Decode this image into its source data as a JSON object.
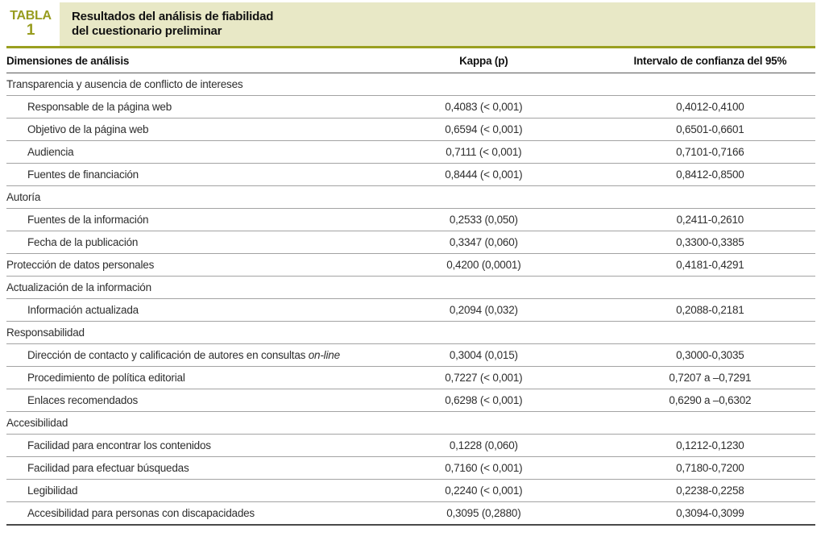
{
  "header": {
    "label_line1": "TABLA",
    "label_line2": "1",
    "title_line1": "Resultados del análisis de fiabilidad",
    "title_line2": "del cuestionario preliminar"
  },
  "colors": {
    "accent_olive": "#9aa020",
    "band_background": "#e8e8c6",
    "row_separator": "#a3a3a3",
    "bottom_rule": "#4a4a4a"
  },
  "table": {
    "columns": {
      "dimensions": "Dimensiones de análisis",
      "kappa": "Kappa (p)",
      "ci": "Intervalo de confianza del 95%"
    },
    "rows": [
      {
        "label": "Transparencia y ausencia de conflicto de intereses",
        "kappa": "",
        "ci": "",
        "category": true
      },
      {
        "label": "Responsable de la página web",
        "kappa": "0,4083 (< 0,001)",
        "ci": "0,4012-0,4100",
        "category": false
      },
      {
        "label": "Objetivo de la página web",
        "kappa": "0,6594 (< 0,001)",
        "ci": "0,6501-0,6601",
        "category": false
      },
      {
        "label": "Audiencia",
        "kappa": "0,7111 (< 0,001)",
        "ci": "0,7101-0,7166",
        "category": false
      },
      {
        "label": "Fuentes de financiación",
        "kappa": "0,8444 (< 0,001)",
        "ci": "0,8412-0,8500",
        "category": false
      },
      {
        "label": "Autoría",
        "kappa": "",
        "ci": "",
        "category": true
      },
      {
        "label": "Fuentes de la información",
        "kappa": "0,2533 (0,050)",
        "ci": "0,2411-0,2610",
        "category": false
      },
      {
        "label": "Fecha de la publicación",
        "kappa": "0,3347 (0,060)",
        "ci": "0,3300-0,3385",
        "category": false
      },
      {
        "label": "Protección de datos personales",
        "kappa": "0,4200 (0,0001)",
        "ci": "0,4181-0,4291",
        "category": true
      },
      {
        "label": "Actualización de la información",
        "kappa": "",
        "ci": "",
        "category": true
      },
      {
        "label": "Información actualizada",
        "kappa": "0,2094 (0,032)",
        "ci": "0,2088-0,2181",
        "category": false
      },
      {
        "label": "Responsabilidad",
        "kappa": "",
        "ci": "",
        "category": true
      },
      {
        "label": "Dirección de contacto y calificación de autores en consultas ",
        "label_italic": "on-line",
        "kappa": "0,3004 (0,015)",
        "ci": "0,3000-0,3035",
        "category": false
      },
      {
        "label": "Procedimiento de política editorial",
        "kappa": "0,7227 (< 0,001)",
        "ci": "0,7207 a –0,7291",
        "category": false
      },
      {
        "label": "Enlaces recomendados",
        "kappa": "0,6298 (< 0,001)",
        "ci": "0,6290 a –0,6302",
        "category": false
      },
      {
        "label": "Accesibilidad",
        "kappa": "",
        "ci": "",
        "category": true
      },
      {
        "label": "Facilidad para encontrar los contenidos",
        "kappa": "0,1228 (0,060)",
        "ci": "0,1212-0,1230",
        "category": false
      },
      {
        "label": "Facilidad para efectuar búsquedas",
        "kappa": "0,7160 (< 0,001)",
        "ci": "0,7180-0,7200",
        "category": false
      },
      {
        "label": "Legibilidad",
        "kappa": "0,2240 (< 0,001)",
        "ci": "0,2238-0,2258",
        "category": false
      },
      {
        "label": "Accesibilidad para personas con discapacidades",
        "kappa": "0,3095 (0,2880)",
        "ci": "0,3094-0,3099",
        "category": false
      }
    ]
  }
}
